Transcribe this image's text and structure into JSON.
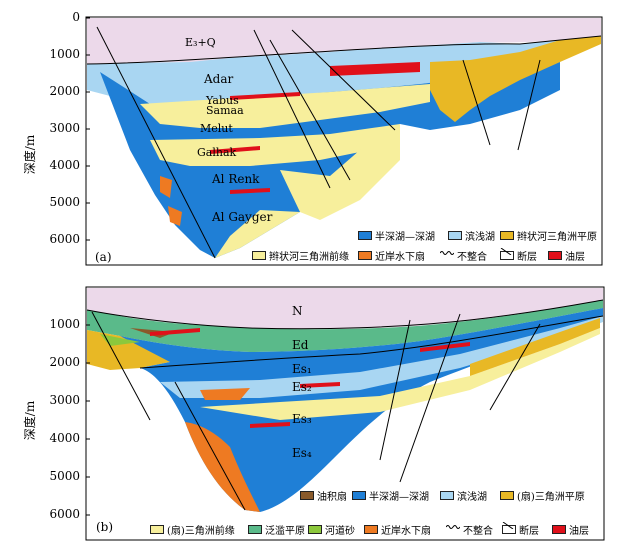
{
  "panel_a": {
    "tag": "(a)",
    "y_title": "深度/m",
    "y_ticks": [
      "0",
      "1000",
      "2000",
      "3000",
      "4000",
      "5000",
      "6000"
    ],
    "units": {
      "top": "E₃+Q",
      "adar": "Adar",
      "yabus": "Yabus",
      "samaa": "Samaa",
      "melut": "Melut",
      "galhak": "Galhak",
      "alrenk": "Al Renk",
      "algayger": "Al Gayger"
    },
    "legend": [
      {
        "label": "半深湖—深湖",
        "swatch": "deep-lake"
      },
      {
        "label": "滨浅湖",
        "swatch": "shallow-lake"
      },
      {
        "label": "辫状河三角洲平原",
        "swatch": "braid-plain"
      },
      {
        "label": "辫状河三角洲前缘",
        "swatch": "braid-front"
      },
      {
        "label": "近岸水下扇",
        "swatch": "nearshore-fan"
      },
      {
        "label": "不整合",
        "swatch": "unconformity"
      },
      {
        "label": "断层",
        "swatch": "fault"
      },
      {
        "label": "油层",
        "swatch": "oil"
      }
    ]
  },
  "panel_b": {
    "tag": "(b)",
    "y_title": "深度/m",
    "y_ticks": [
      "1000",
      "2000",
      "3000",
      "4000",
      "5000",
      "6000"
    ],
    "units": {
      "n": "N",
      "ed": "Ed",
      "es1": "Es₁",
      "es2": "Es₂",
      "es3": "Es₃",
      "es4": "Es₄"
    },
    "legend": [
      {
        "label": "油积扇",
        "swatch": "alluvial-fan"
      },
      {
        "label": "半深湖—深湖",
        "swatch": "deep-lake"
      },
      {
        "label": "滨浅湖",
        "swatch": "shallow-lake"
      },
      {
        "label": "(扇)三角洲平原",
        "swatch": "braid-plain"
      },
      {
        "label": "(扇)三角洲前缘",
        "swatch": "braid-front"
      },
      {
        "label": "泛滥平原",
        "swatch": "floodplain"
      },
      {
        "label": "河道砂",
        "swatch": "channel-sand"
      },
      {
        "label": "近岸水下扇",
        "swatch": "nearshore-fan"
      },
      {
        "label": "不整合",
        "swatch": "unconformity"
      },
      {
        "label": "断层",
        "swatch": "fault"
      },
      {
        "label": "油层",
        "swatch": "oil"
      }
    ]
  },
  "colors": {
    "cover": "#ecd9ea",
    "deep-lake": "#1f7fd6",
    "shallow-lake": "#a9d6f2",
    "braid-plain": "#e8b825",
    "braid-front": "#f7ef9c",
    "nearshore-fan": "#ee7a22",
    "oil": "#e0101a",
    "alluvial-fan": "#8a5a2a",
    "floodplain": "#5aba8a",
    "channel-sand": "#8cc83c"
  }
}
